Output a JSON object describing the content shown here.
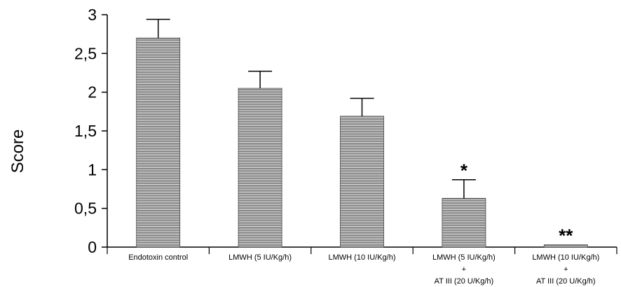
{
  "chart_data": {
    "type": "bar",
    "ylabel": "Score",
    "xlabel": "",
    "ylim": [
      0,
      3
    ],
    "yticks": [
      0,
      0.5,
      1,
      1.5,
      2,
      2.5,
      3
    ],
    "ytick_labels": [
      "0",
      "0,5",
      "1",
      "1,5",
      "2",
      "2,5",
      "3"
    ],
    "categories": [
      [
        "Endotoxin control"
      ],
      [
        "LMWH (5 IU/Kg/h)"
      ],
      [
        "LMWH (10 IU/Kg/h)"
      ],
      [
        "LMWH (5 IU/Kg/h)",
        "+",
        "AT III (20 U/Kg/h)"
      ],
      [
        "LMWH (10 IU/Kg/h)",
        "+",
        "AT III (20 U/Kg/h)"
      ]
    ],
    "values": [
      2.7,
      2.05,
      1.69,
      0.63,
      0.03
    ],
    "errors": [
      0.24,
      0.22,
      0.23,
      0.24,
      0
    ],
    "significance": [
      "",
      "",
      "",
      "*",
      "**"
    ],
    "grid": false,
    "bar_fill": "hatched-gray"
  }
}
